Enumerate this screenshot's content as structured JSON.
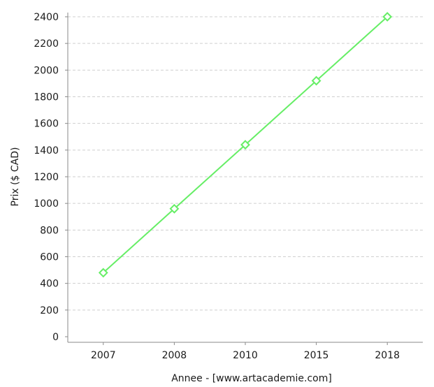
{
  "chart_data": {
    "type": "line",
    "categories": [
      "2007",
      "2008",
      "2010",
      "2015",
      "2018"
    ],
    "series": [
      {
        "values": [
          480,
          960,
          1440,
          1920,
          2400
        ],
        "color": "#66ee66",
        "marker": "diamond"
      }
    ],
    "xlabel": "Annee - [www.artacademie.com]",
    "ylabel": "Prix ($ CAD)",
    "ylim": [
      0,
      2400
    ],
    "yticks": [
      0,
      200,
      400,
      600,
      800,
      1000,
      1200,
      1400,
      1600,
      1800,
      2000,
      2200,
      2400
    ],
    "grid": true,
    "legend": "none"
  }
}
